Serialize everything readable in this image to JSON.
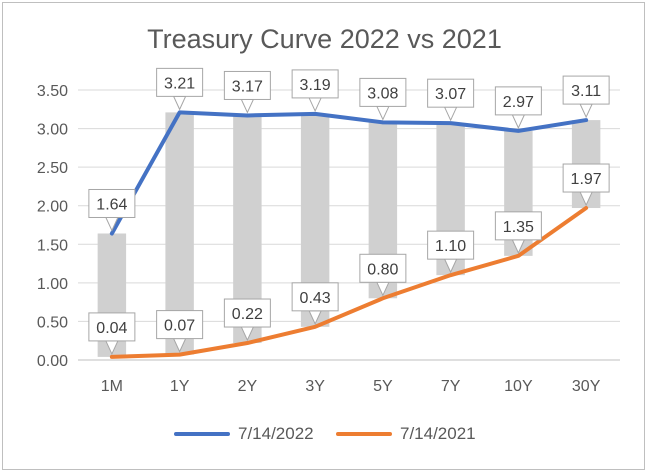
{
  "chart_data": {
    "type": "line",
    "title": "Treasury Curve 2022 vs 2021",
    "xlabel": "",
    "ylabel": "",
    "categories": [
      "1M",
      "1Y",
      "2Y",
      "3Y",
      "5Y",
      "7Y",
      "10Y",
      "30Y"
    ],
    "ylim": [
      0,
      3.5
    ],
    "yticks": [
      "0.00",
      "0.50",
      "1.00",
      "1.50",
      "2.00",
      "2.50",
      "3.00",
      "3.50"
    ],
    "grid": true,
    "legend_position": "bottom",
    "range_bars": "grey bars spanning between the two series at each maturity",
    "series": [
      {
        "name": "7/14/2022",
        "color": "#4472C4",
        "values": [
          1.64,
          3.21,
          3.17,
          3.19,
          3.08,
          3.07,
          2.97,
          3.11
        ],
        "labels": [
          "1.64",
          "3.21",
          "3.17",
          "3.19",
          "3.08",
          "3.07",
          "2.97",
          "3.11"
        ]
      },
      {
        "name": "7/14/2021",
        "color": "#ED7D31",
        "values": [
          0.04,
          0.07,
          0.22,
          0.43,
          0.8,
          1.1,
          1.35,
          1.97
        ],
        "labels": [
          "0.04",
          "0.07",
          "0.22",
          "0.43",
          "0.80",
          "1.10",
          "1.35",
          "1.97"
        ]
      }
    ]
  }
}
